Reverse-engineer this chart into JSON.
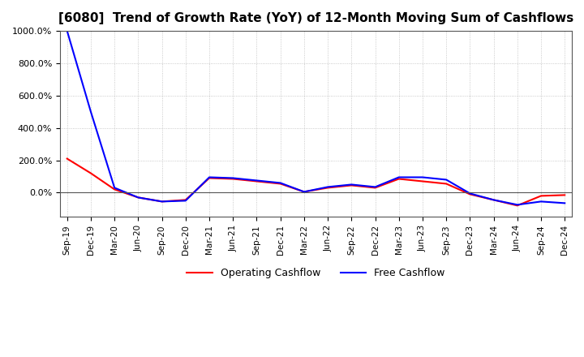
{
  "title": "[6080]  Trend of Growth Rate (YoY) of 12-Month Moving Sum of Cashflows",
  "title_fontsize": 11,
  "ylim": [
    -150,
    1000
  ],
  "yticks": [
    0,
    200,
    400,
    600,
    800,
    1000
  ],
  "ytick_labels": [
    "0.0%",
    "200.0%",
    "400.0%",
    "600.0%",
    "800.0%",
    "1000.0%"
  ],
  "background_color": "#ffffff",
  "grid_color": "#aaaaaa",
  "legend_entries": [
    "Operating Cashflow",
    "Free Cashflow"
  ],
  "legend_colors": [
    "red",
    "blue"
  ],
  "x_labels": [
    "Sep-19",
    "Dec-19",
    "Mar-20",
    "Jun-20",
    "Sep-20",
    "Dec-20",
    "Mar-21",
    "Jun-21",
    "Sep-21",
    "Dec-21",
    "Mar-22",
    "Jun-22",
    "Sep-22",
    "Dec-22",
    "Mar-23",
    "Jun-23",
    "Sep-23",
    "Dec-23",
    "Mar-24",
    "Jun-24",
    "Sep-24",
    "Dec-24"
  ],
  "operating_cashflow": [
    210,
    120,
    20,
    -30,
    -55,
    -45,
    90,
    85,
    70,
    55,
    5,
    30,
    45,
    30,
    85,
    70,
    55,
    -10,
    -45,
    -80,
    -20,
    -15
  ],
  "free_cashflow": [
    1000,
    500,
    30,
    -30,
    -55,
    -50,
    95,
    90,
    75,
    60,
    5,
    35,
    50,
    35,
    95,
    95,
    80,
    -5,
    -45,
    -75,
    -55,
    -65
  ]
}
